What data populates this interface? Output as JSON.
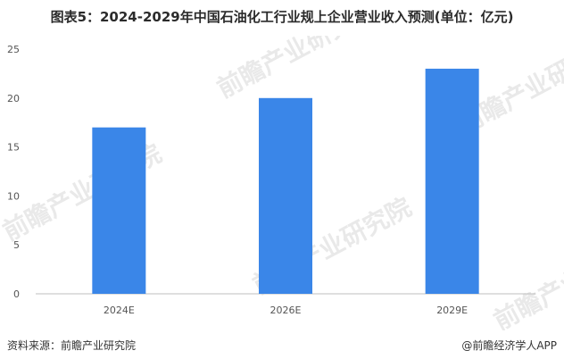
{
  "chart_data": {
    "type": "bar",
    "title": "图表5：2024-2029年中国石油化工行业规上企业营业收入预测(单位：亿元)",
    "categories": [
      "2024E",
      "2026E",
      "2029E"
    ],
    "values": [
      17,
      20,
      23
    ],
    "ylim": [
      0,
      25
    ],
    "yticks": [
      0,
      5,
      10,
      15,
      20,
      25
    ],
    "bar_color": "#3a86e8",
    "grid": false,
    "legend": "none"
  },
  "footer": {
    "source": "资料来源：前瞻产业研究院",
    "brand": "@前瞻经济学人APP"
  },
  "watermark_text": "前瞻产业研究院"
}
